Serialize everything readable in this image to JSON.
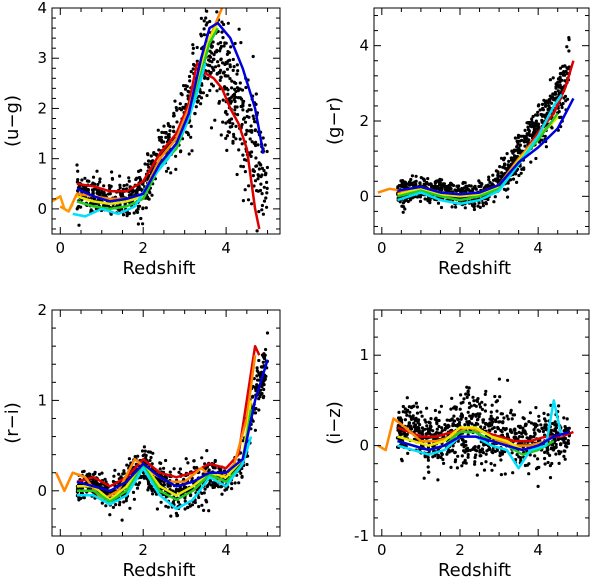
{
  "figure": {
    "panels": [
      "u-g",
      "g-r",
      "r-i",
      "i-z"
    ]
  },
  "series_colors": {
    "scatter": "#000000",
    "red": "#dd0000",
    "orange": "#ff8800",
    "yellow": "#e8e800",
    "green": "#22cc22",
    "cyan": "#00e0ff",
    "blue": "#0000dd",
    "gold": "#ff9900"
  },
  "chart_data": [
    {
      "type": "scatter",
      "ylabel": "(u−g)",
      "xlabel": "Redshift",
      "xlim": [
        -0.2,
        5.3
      ],
      "ylim": [
        -0.5,
        4
      ],
      "xticks": [
        0,
        2,
        4
      ],
      "yticks": [
        0,
        1,
        2,
        3,
        4
      ],
      "scatter_envelope": {
        "x": [
          0.4,
          1.0,
          1.6,
          2.0,
          2.4,
          2.8,
          3.2,
          3.5,
          3.8,
          4.1,
          4.4,
          4.7,
          5.0
        ],
        "center": [
          0.35,
          0.2,
          0.15,
          0.3,
          1.1,
          1.5,
          2.3,
          3.2,
          3.0,
          2.3,
          1.8,
          1.2,
          0.5
        ],
        "spread": [
          0.35,
          0.3,
          0.35,
          0.45,
          0.45,
          0.5,
          0.7,
          0.9,
          1.0,
          1.0,
          1.1,
          1.1,
          1.0
        ]
      },
      "series": [
        {
          "color": "red",
          "x": [
            0.4,
            0.8,
            1.2,
            1.6,
            2.0,
            2.4,
            2.8,
            3.1,
            3.3,
            3.5,
            3.7,
            3.9,
            4.1,
            4.3,
            4.5,
            4.7,
            4.8
          ],
          "y": [
            0.5,
            0.45,
            0.35,
            0.35,
            0.55,
            1.1,
            1.5,
            2.1,
            2.9,
            2.7,
            2.6,
            2.4,
            2.0,
            1.7,
            1.2,
            0.0,
            -0.4
          ]
        },
        {
          "color": "orange",
          "x": [
            0.0,
            0.2,
            0.4,
            0.8,
            1.2,
            1.6,
            2.0,
            2.4,
            2.8,
            3.1,
            3.4,
            3.7,
            3.9
          ],
          "y": [
            0.05,
            -0.05,
            0.3,
            0.25,
            0.2,
            0.2,
            0.3,
            1.0,
            1.4,
            2.0,
            2.9,
            3.6,
            4.0
          ]
        },
        {
          "color": "yellow",
          "x": [
            0.4,
            0.8,
            1.2,
            1.6,
            2.0,
            2.4,
            2.8,
            3.1,
            3.4,
            3.6,
            3.8
          ],
          "y": [
            0.25,
            0.15,
            0.1,
            0.15,
            0.25,
            0.9,
            1.3,
            1.9,
            2.8,
            3.4,
            3.7
          ]
        },
        {
          "color": "green",
          "x": [
            0.4,
            0.8,
            1.2,
            1.6,
            2.0,
            2.4,
            2.8,
            3.1,
            3.4,
            3.6,
            3.8
          ],
          "y": [
            0.15,
            0.05,
            0.0,
            0.05,
            0.2,
            0.85,
            1.2,
            1.8,
            2.7,
            3.3,
            3.6
          ]
        },
        {
          "color": "cyan",
          "x": [
            0.3,
            0.6,
            1.0,
            1.4,
            1.8,
            2.2,
            2.6,
            3.0,
            3.3,
            3.5
          ],
          "y": [
            -0.1,
            -0.15,
            0.0,
            -0.1,
            0.05,
            0.6,
            1.0,
            1.6,
            2.3,
            2.9
          ]
        },
        {
          "color": "blue",
          "x": [
            0.4,
            0.8,
            1.2,
            1.6,
            2.0,
            2.4,
            2.8,
            3.1,
            3.4,
            3.6,
            3.8,
            4.1,
            4.4,
            4.7,
            4.9
          ],
          "y": [
            0.4,
            0.25,
            0.15,
            0.2,
            0.3,
            0.9,
            1.3,
            1.9,
            3.0,
            3.6,
            3.7,
            3.4,
            2.8,
            2.0,
            1.1
          ]
        },
        {
          "color": "gold",
          "x": [
            -0.2,
            0.0,
            0.1,
            0.2,
            0.3
          ],
          "y": [
            0.15,
            0.25,
            0.0,
            -0.05,
            0.1
          ]
        }
      ]
    },
    {
      "type": "scatter",
      "ylabel": "(g−r)",
      "xlabel": "Redshift",
      "xlim": [
        -0.2,
        5.3
      ],
      "ylim": [
        -1,
        5
      ],
      "xticks": [
        0,
        2,
        4
      ],
      "yticks": [
        0,
        2,
        4
      ],
      "scatter_envelope": {
        "x": [
          0.4,
          1.0,
          1.6,
          2.0,
          2.4,
          2.8,
          3.2,
          3.6,
          4.0,
          4.4,
          4.8
        ],
        "center": [
          0.1,
          0.2,
          0.1,
          0.0,
          0.0,
          0.2,
          0.6,
          1.3,
          1.8,
          2.4,
          3.2
        ],
        "spread": [
          0.3,
          0.3,
          0.3,
          0.3,
          0.3,
          0.3,
          0.4,
          0.5,
          0.5,
          0.6,
          0.9
        ]
      },
      "series": [
        {
          "color": "red",
          "x": [
            0.4,
            0.8,
            1.2,
            1.6,
            2.0,
            2.4,
            2.8,
            3.2,
            3.6,
            4.0,
            4.4,
            4.7,
            4.9
          ],
          "y": [
            0.1,
            0.2,
            0.2,
            0.05,
            0.0,
            0.05,
            0.15,
            0.5,
            1.1,
            1.7,
            2.2,
            2.9,
            3.6
          ]
        },
        {
          "color": "orange",
          "x": [
            -0.1,
            0.2,
            0.5,
            1.0,
            1.5,
            2.0,
            2.5,
            3.0,
            3.5,
            4.0,
            4.5
          ],
          "y": [
            0.1,
            0.2,
            0.15,
            0.25,
            0.1,
            0.05,
            0.1,
            0.3,
            1.0,
            1.6,
            2.1
          ]
        },
        {
          "color": "yellow",
          "x": [
            0.4,
            1.0,
            1.5,
            2.0,
            2.5,
            3.0,
            3.5,
            4.0,
            4.5
          ],
          "y": [
            0.05,
            0.2,
            0.05,
            0.0,
            0.05,
            0.25,
            0.95,
            1.55,
            2.1
          ]
        },
        {
          "color": "green",
          "x": [
            0.4,
            1.0,
            1.5,
            2.0,
            2.5,
            3.0,
            3.5,
            4.0,
            4.5
          ],
          "y": [
            0.0,
            0.15,
            0.0,
            -0.1,
            0.0,
            0.2,
            0.9,
            1.5,
            2.2
          ]
        },
        {
          "color": "cyan",
          "x": [
            0.4,
            1.0,
            1.5,
            2.0,
            2.5,
            3.0,
            3.5,
            4.0,
            4.4,
            4.6
          ],
          "y": [
            -0.1,
            0.1,
            -0.1,
            -0.2,
            -0.1,
            0.15,
            0.85,
            1.6,
            2.4,
            2.7
          ]
        },
        {
          "color": "blue",
          "x": [
            0.4,
            1.0,
            1.5,
            2.0,
            2.5,
            3.0,
            3.5,
            4.0,
            4.5,
            4.9
          ],
          "y": [
            0.15,
            0.25,
            0.1,
            0.05,
            0.1,
            0.3,
            0.9,
            1.3,
            1.8,
            2.6
          ]
        }
      ]
    },
    {
      "type": "scatter",
      "ylabel": "(r−i)",
      "xlabel": "Redshift",
      "xlim": [
        -0.2,
        5.3
      ],
      "ylim": [
        -0.5,
        2
      ],
      "xticks": [
        0,
        2,
        4
      ],
      "yticks": [
        0,
        1,
        2
      ],
      "scatter_envelope": {
        "x": [
          0.4,
          0.8,
          1.2,
          1.6,
          2.0,
          2.4,
          2.8,
          3.2,
          3.6,
          4.0,
          4.4,
          4.7,
          5.0
        ],
        "center": [
          0.05,
          0.1,
          -0.05,
          0.05,
          0.3,
          0.1,
          -0.05,
          0.05,
          0.15,
          0.15,
          0.3,
          1.1,
          1.4
        ],
        "spread": [
          0.15,
          0.15,
          0.15,
          0.2,
          0.2,
          0.2,
          0.2,
          0.2,
          0.2,
          0.15,
          0.2,
          0.3,
          0.3
        ]
      },
      "series": [
        {
          "color": "red",
          "x": [
            0.4,
            0.8,
            1.2,
            1.6,
            2.0,
            2.4,
            2.8,
            3.2,
            3.6,
            4.0,
            4.3,
            4.5,
            4.7,
            4.8
          ],
          "y": [
            0.1,
            0.15,
            0.05,
            0.15,
            0.35,
            0.2,
            0.15,
            0.2,
            0.3,
            0.25,
            0.4,
            1.0,
            1.6,
            1.5
          ]
        },
        {
          "color": "orange",
          "x": [
            -0.1,
            0.1,
            0.3,
            0.6,
            1.0,
            1.4,
            1.8,
            2.2,
            2.6,
            3.0,
            3.4,
            3.8,
            4.2,
            4.5,
            4.7
          ],
          "y": [
            0.2,
            0.0,
            0.2,
            0.15,
            -0.1,
            0.0,
            0.35,
            0.2,
            0.1,
            0.1,
            0.25,
            0.1,
            0.3,
            0.8,
            1.5
          ]
        },
        {
          "color": "yellow",
          "x": [
            0.4,
            0.8,
            1.2,
            1.6,
            2.0,
            2.4,
            2.8,
            3.2,
            3.6,
            4.0,
            4.4,
            4.6
          ],
          "y": [
            0.05,
            0.05,
            -0.1,
            0.05,
            0.3,
            0.05,
            -0.05,
            0.05,
            0.2,
            0.15,
            0.35,
            1.0
          ]
        },
        {
          "color": "green",
          "x": [
            0.4,
            0.8,
            1.2,
            1.6,
            2.0,
            2.4,
            2.8,
            3.2,
            3.6,
            4.0,
            4.4,
            4.6
          ],
          "y": [
            0.0,
            0.0,
            -0.12,
            0.0,
            0.28,
            0.0,
            -0.1,
            0.0,
            0.18,
            0.1,
            0.3,
            0.9
          ]
        },
        {
          "color": "cyan",
          "x": [
            0.4,
            0.8,
            1.2,
            1.6,
            2.0,
            2.4,
            2.8,
            3.2,
            3.6,
            4.0,
            4.4,
            4.6
          ],
          "y": [
            -0.05,
            -0.05,
            -0.15,
            -0.05,
            0.25,
            -0.05,
            -0.2,
            -0.1,
            0.15,
            0.05,
            0.3,
            0.6
          ]
        },
        {
          "color": "blue",
          "x": [
            0.4,
            0.8,
            1.2,
            1.6,
            2.0,
            2.4,
            2.8,
            3.2,
            3.6,
            4.0,
            4.4,
            4.7,
            5.0
          ],
          "y": [
            0.1,
            0.05,
            0.0,
            0.1,
            0.3,
            0.15,
            0.05,
            0.1,
            0.2,
            0.2,
            0.35,
            1.0,
            1.45
          ]
        }
      ]
    },
    {
      "type": "scatter",
      "ylabel": "(i−z)",
      "xlabel": "Redshift",
      "xlim": [
        -0.2,
        5.3
      ],
      "ylim": [
        -1,
        1.5
      ],
      "xticks": [
        0,
        2,
        4
      ],
      "yticks": [
        -1,
        0,
        1
      ],
      "scatter_envelope": {
        "x": [
          0.4,
          0.8,
          1.2,
          1.6,
          2.0,
          2.4,
          2.8,
          3.2,
          3.6,
          4.0,
          4.4,
          4.8
        ],
        "center": [
          0.15,
          0.2,
          0.05,
          0.05,
          0.15,
          0.2,
          0.1,
          0.1,
          0.05,
          0.05,
          0.1,
          0.1
        ],
        "spread": [
          0.25,
          0.3,
          0.25,
          0.3,
          0.35,
          0.4,
          0.35,
          0.3,
          0.3,
          0.3,
          0.25,
          0.2
        ]
      },
      "series": [
        {
          "color": "red",
          "x": [
            0.4,
            0.7,
            1.0,
            1.4,
            1.8,
            2.2,
            2.6,
            3.0,
            3.4,
            3.8,
            4.2,
            4.6,
            4.9
          ],
          "y": [
            0.2,
            0.15,
            0.1,
            0.1,
            0.15,
            0.2,
            0.15,
            0.1,
            0.05,
            0.05,
            0.1,
            0.1,
            0.15
          ]
        },
        {
          "color": "orange",
          "x": [
            -0.1,
            0.1,
            0.3,
            0.6,
            1.0,
            1.4,
            1.8,
            2.2,
            2.6,
            3.0,
            3.4,
            3.8,
            4.2
          ],
          "y": [
            0.0,
            -0.05,
            0.3,
            0.2,
            0.05,
            0.05,
            0.1,
            0.2,
            0.15,
            0.05,
            0.0,
            0.0,
            0.05
          ]
        },
        {
          "color": "yellow",
          "x": [
            0.4,
            0.8,
            1.2,
            1.6,
            2.0,
            2.4,
            2.8,
            3.2,
            3.6,
            4.0,
            4.4
          ],
          "y": [
            0.1,
            0.05,
            0.0,
            0.05,
            0.2,
            0.2,
            0.1,
            0.05,
            -0.05,
            0.0,
            0.1
          ]
        },
        {
          "color": "green",
          "x": [
            0.4,
            0.8,
            1.2,
            1.6,
            2.0,
            2.4,
            2.8,
            3.2,
            3.6,
            4.0,
            4.4
          ],
          "y": [
            0.05,
            0.0,
            -0.05,
            0.0,
            0.15,
            0.15,
            0.05,
            0.0,
            -0.1,
            -0.05,
            0.05
          ]
        },
        {
          "color": "cyan",
          "x": [
            0.4,
            0.8,
            1.2,
            1.6,
            2.0,
            2.4,
            2.8,
            3.2,
            3.5,
            3.8,
            4.2,
            4.4,
            4.6
          ],
          "y": [
            0.0,
            -0.05,
            -0.1,
            -0.05,
            0.1,
            0.1,
            0.0,
            -0.05,
            -0.25,
            -0.05,
            0.0,
            0.5,
            0.1
          ]
        },
        {
          "color": "blue",
          "x": [
            0.4,
            0.8,
            1.2,
            1.6,
            2.0,
            2.4,
            2.8,
            3.2,
            3.6,
            4.0,
            4.4,
            4.8
          ],
          "y": [
            0.05,
            0.0,
            -0.05,
            0.0,
            0.1,
            0.1,
            0.05,
            0.0,
            -0.05,
            0.0,
            0.1,
            0.15
          ]
        }
      ]
    }
  ]
}
